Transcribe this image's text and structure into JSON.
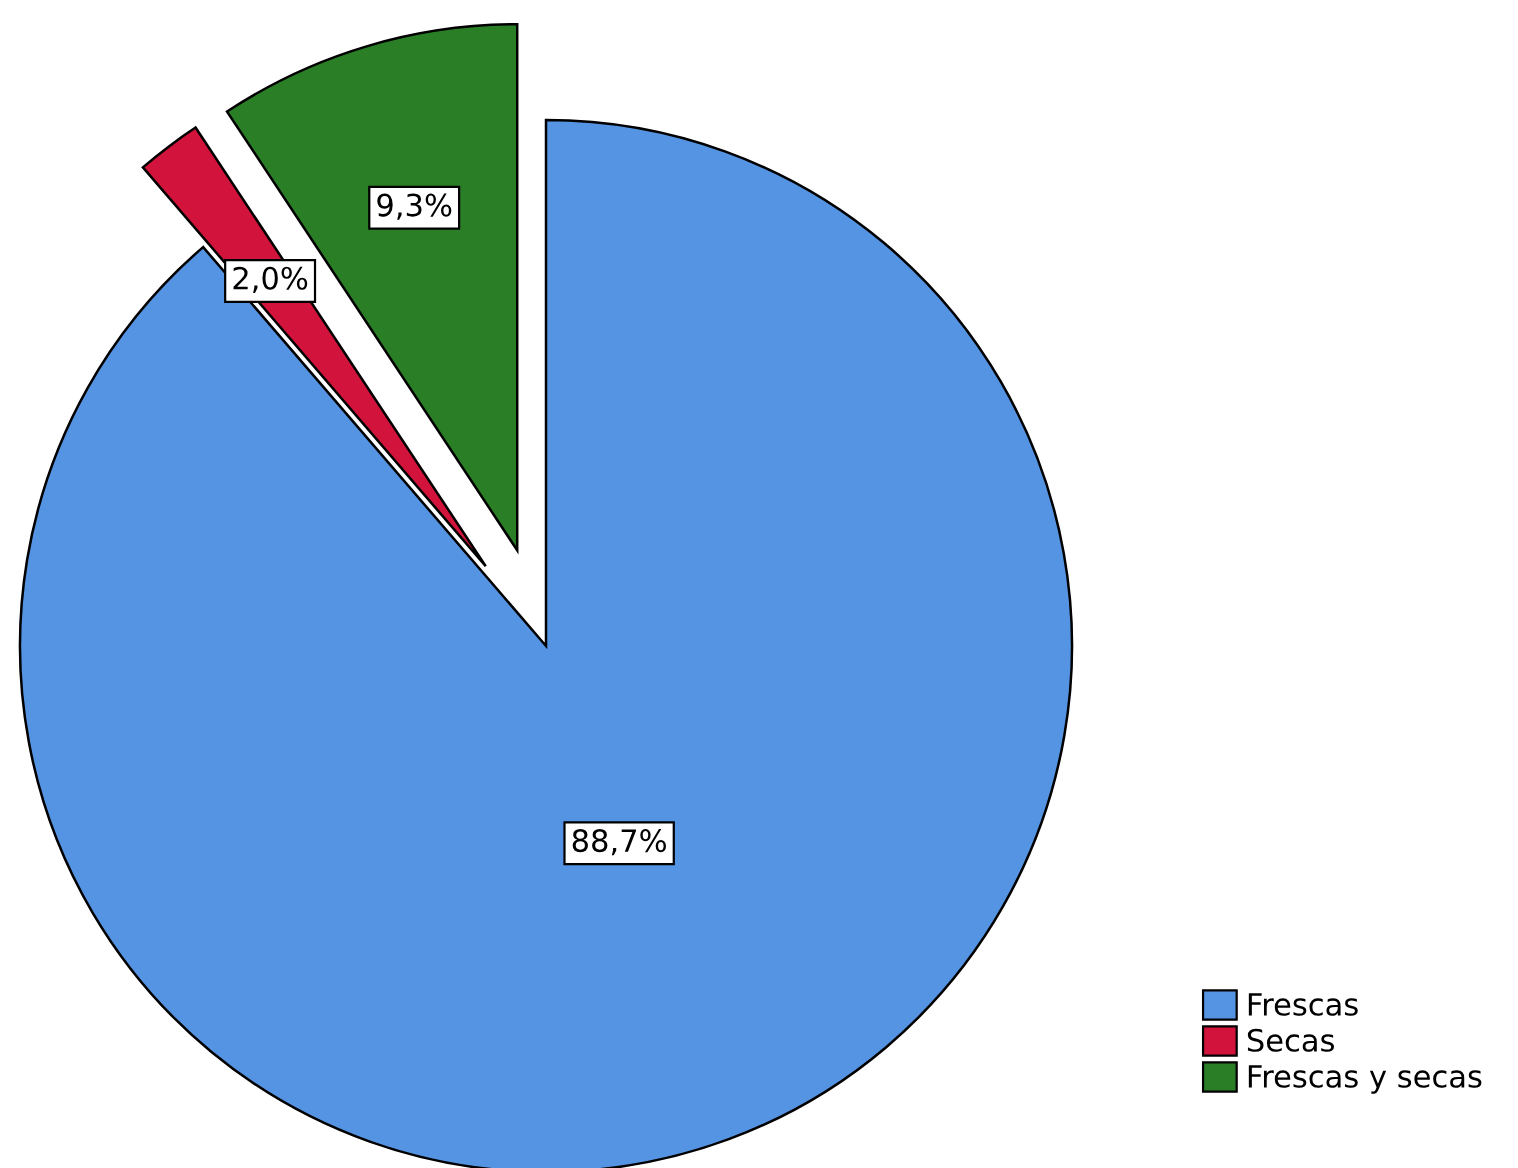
{
  "chart_data": {
    "type": "pie",
    "categories": [
      "Frescas",
      "Secas",
      "Frescas y secas"
    ],
    "values": [
      88.7,
      2.0,
      9.3
    ],
    "value_labels": [
      "88,7%",
      "2,0%",
      "9,3%"
    ],
    "colors": [
      "#5594e2",
      "#d2143c",
      "#2a7f26"
    ],
    "legend": "bottom right"
  }
}
